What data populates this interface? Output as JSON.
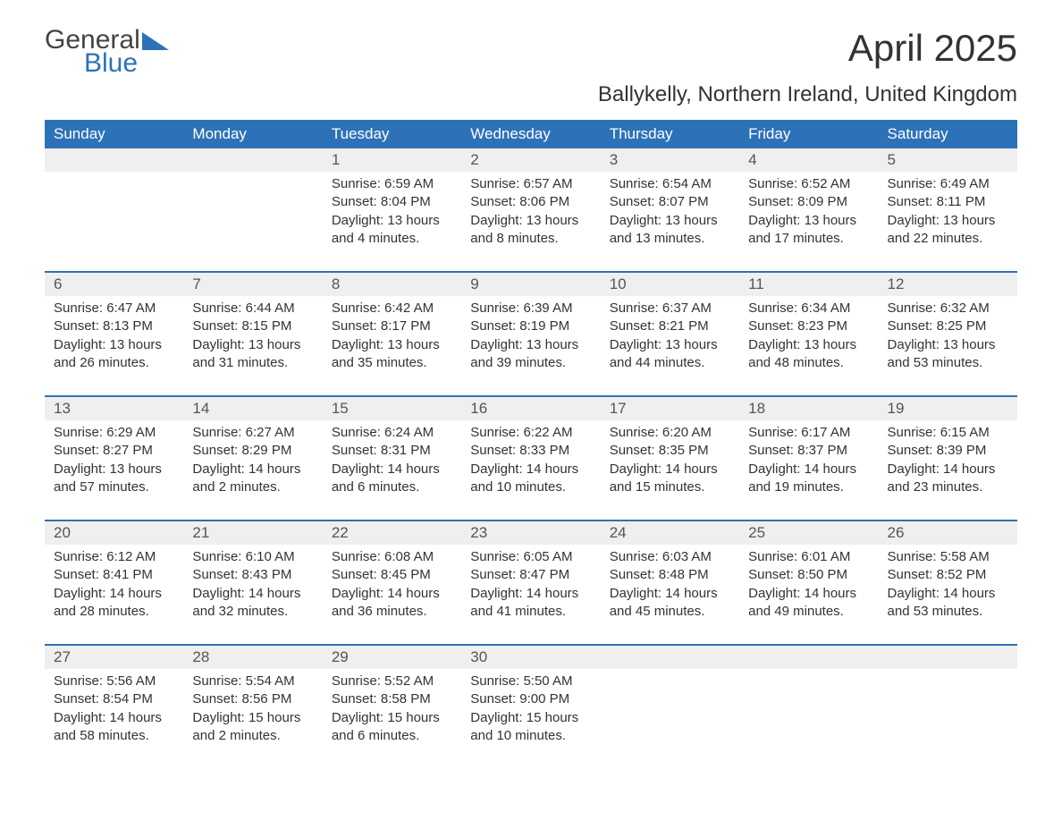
{
  "logo": {
    "general": "General",
    "blue": "Blue",
    "shape_color": "#2d72b8"
  },
  "title": "April 2025",
  "subtitle": "Ballykelly, Northern Ireland, United Kingdom",
  "colors": {
    "header_bg": "#2d72b8",
    "header_text": "#ffffff",
    "row_divider": "#2d72b8",
    "daynum_bg": "#efefef",
    "text": "#333333",
    "background": "#ffffff"
  },
  "fonts": {
    "title_size": 42,
    "subtitle_size": 24,
    "header_size": 17,
    "body_size": 15
  },
  "day_headers": [
    "Sunday",
    "Monday",
    "Tuesday",
    "Wednesday",
    "Thursday",
    "Friday",
    "Saturday"
  ],
  "weeks": [
    [
      {
        "n": "",
        "sunrise": "",
        "sunset": "",
        "daylight": ""
      },
      {
        "n": "",
        "sunrise": "",
        "sunset": "",
        "daylight": ""
      },
      {
        "n": "1",
        "sunrise": "Sunrise: 6:59 AM",
        "sunset": "Sunset: 8:04 PM",
        "daylight": "Daylight: 13 hours and 4 minutes."
      },
      {
        "n": "2",
        "sunrise": "Sunrise: 6:57 AM",
        "sunset": "Sunset: 8:06 PM",
        "daylight": "Daylight: 13 hours and 8 minutes."
      },
      {
        "n": "3",
        "sunrise": "Sunrise: 6:54 AM",
        "sunset": "Sunset: 8:07 PM",
        "daylight": "Daylight: 13 hours and 13 minutes."
      },
      {
        "n": "4",
        "sunrise": "Sunrise: 6:52 AM",
        "sunset": "Sunset: 8:09 PM",
        "daylight": "Daylight: 13 hours and 17 minutes."
      },
      {
        "n": "5",
        "sunrise": "Sunrise: 6:49 AM",
        "sunset": "Sunset: 8:11 PM",
        "daylight": "Daylight: 13 hours and 22 minutes."
      }
    ],
    [
      {
        "n": "6",
        "sunrise": "Sunrise: 6:47 AM",
        "sunset": "Sunset: 8:13 PM",
        "daylight": "Daylight: 13 hours and 26 minutes."
      },
      {
        "n": "7",
        "sunrise": "Sunrise: 6:44 AM",
        "sunset": "Sunset: 8:15 PM",
        "daylight": "Daylight: 13 hours and 31 minutes."
      },
      {
        "n": "8",
        "sunrise": "Sunrise: 6:42 AM",
        "sunset": "Sunset: 8:17 PM",
        "daylight": "Daylight: 13 hours and 35 minutes."
      },
      {
        "n": "9",
        "sunrise": "Sunrise: 6:39 AM",
        "sunset": "Sunset: 8:19 PM",
        "daylight": "Daylight: 13 hours and 39 minutes."
      },
      {
        "n": "10",
        "sunrise": "Sunrise: 6:37 AM",
        "sunset": "Sunset: 8:21 PM",
        "daylight": "Daylight: 13 hours and 44 minutes."
      },
      {
        "n": "11",
        "sunrise": "Sunrise: 6:34 AM",
        "sunset": "Sunset: 8:23 PM",
        "daylight": "Daylight: 13 hours and 48 minutes."
      },
      {
        "n": "12",
        "sunrise": "Sunrise: 6:32 AM",
        "sunset": "Sunset: 8:25 PM",
        "daylight": "Daylight: 13 hours and 53 minutes."
      }
    ],
    [
      {
        "n": "13",
        "sunrise": "Sunrise: 6:29 AM",
        "sunset": "Sunset: 8:27 PM",
        "daylight": "Daylight: 13 hours and 57 minutes."
      },
      {
        "n": "14",
        "sunrise": "Sunrise: 6:27 AM",
        "sunset": "Sunset: 8:29 PM",
        "daylight": "Daylight: 14 hours and 2 minutes."
      },
      {
        "n": "15",
        "sunrise": "Sunrise: 6:24 AM",
        "sunset": "Sunset: 8:31 PM",
        "daylight": "Daylight: 14 hours and 6 minutes."
      },
      {
        "n": "16",
        "sunrise": "Sunrise: 6:22 AM",
        "sunset": "Sunset: 8:33 PM",
        "daylight": "Daylight: 14 hours and 10 minutes."
      },
      {
        "n": "17",
        "sunrise": "Sunrise: 6:20 AM",
        "sunset": "Sunset: 8:35 PM",
        "daylight": "Daylight: 14 hours and 15 minutes."
      },
      {
        "n": "18",
        "sunrise": "Sunrise: 6:17 AM",
        "sunset": "Sunset: 8:37 PM",
        "daylight": "Daylight: 14 hours and 19 minutes."
      },
      {
        "n": "19",
        "sunrise": "Sunrise: 6:15 AM",
        "sunset": "Sunset: 8:39 PM",
        "daylight": "Daylight: 14 hours and 23 minutes."
      }
    ],
    [
      {
        "n": "20",
        "sunrise": "Sunrise: 6:12 AM",
        "sunset": "Sunset: 8:41 PM",
        "daylight": "Daylight: 14 hours and 28 minutes."
      },
      {
        "n": "21",
        "sunrise": "Sunrise: 6:10 AM",
        "sunset": "Sunset: 8:43 PM",
        "daylight": "Daylight: 14 hours and 32 minutes."
      },
      {
        "n": "22",
        "sunrise": "Sunrise: 6:08 AM",
        "sunset": "Sunset: 8:45 PM",
        "daylight": "Daylight: 14 hours and 36 minutes."
      },
      {
        "n": "23",
        "sunrise": "Sunrise: 6:05 AM",
        "sunset": "Sunset: 8:47 PM",
        "daylight": "Daylight: 14 hours and 41 minutes."
      },
      {
        "n": "24",
        "sunrise": "Sunrise: 6:03 AM",
        "sunset": "Sunset: 8:48 PM",
        "daylight": "Daylight: 14 hours and 45 minutes."
      },
      {
        "n": "25",
        "sunrise": "Sunrise: 6:01 AM",
        "sunset": "Sunset: 8:50 PM",
        "daylight": "Daylight: 14 hours and 49 minutes."
      },
      {
        "n": "26",
        "sunrise": "Sunrise: 5:58 AM",
        "sunset": "Sunset: 8:52 PM",
        "daylight": "Daylight: 14 hours and 53 minutes."
      }
    ],
    [
      {
        "n": "27",
        "sunrise": "Sunrise: 5:56 AM",
        "sunset": "Sunset: 8:54 PM",
        "daylight": "Daylight: 14 hours and 58 minutes."
      },
      {
        "n": "28",
        "sunrise": "Sunrise: 5:54 AM",
        "sunset": "Sunset: 8:56 PM",
        "daylight": "Daylight: 15 hours and 2 minutes."
      },
      {
        "n": "29",
        "sunrise": "Sunrise: 5:52 AM",
        "sunset": "Sunset: 8:58 PM",
        "daylight": "Daylight: 15 hours and 6 minutes."
      },
      {
        "n": "30",
        "sunrise": "Sunrise: 5:50 AM",
        "sunset": "Sunset: 9:00 PM",
        "daylight": "Daylight: 15 hours and 10 minutes."
      },
      {
        "n": "",
        "sunrise": "",
        "sunset": "",
        "daylight": ""
      },
      {
        "n": "",
        "sunrise": "",
        "sunset": "",
        "daylight": ""
      },
      {
        "n": "",
        "sunrise": "",
        "sunset": "",
        "daylight": ""
      }
    ]
  ]
}
